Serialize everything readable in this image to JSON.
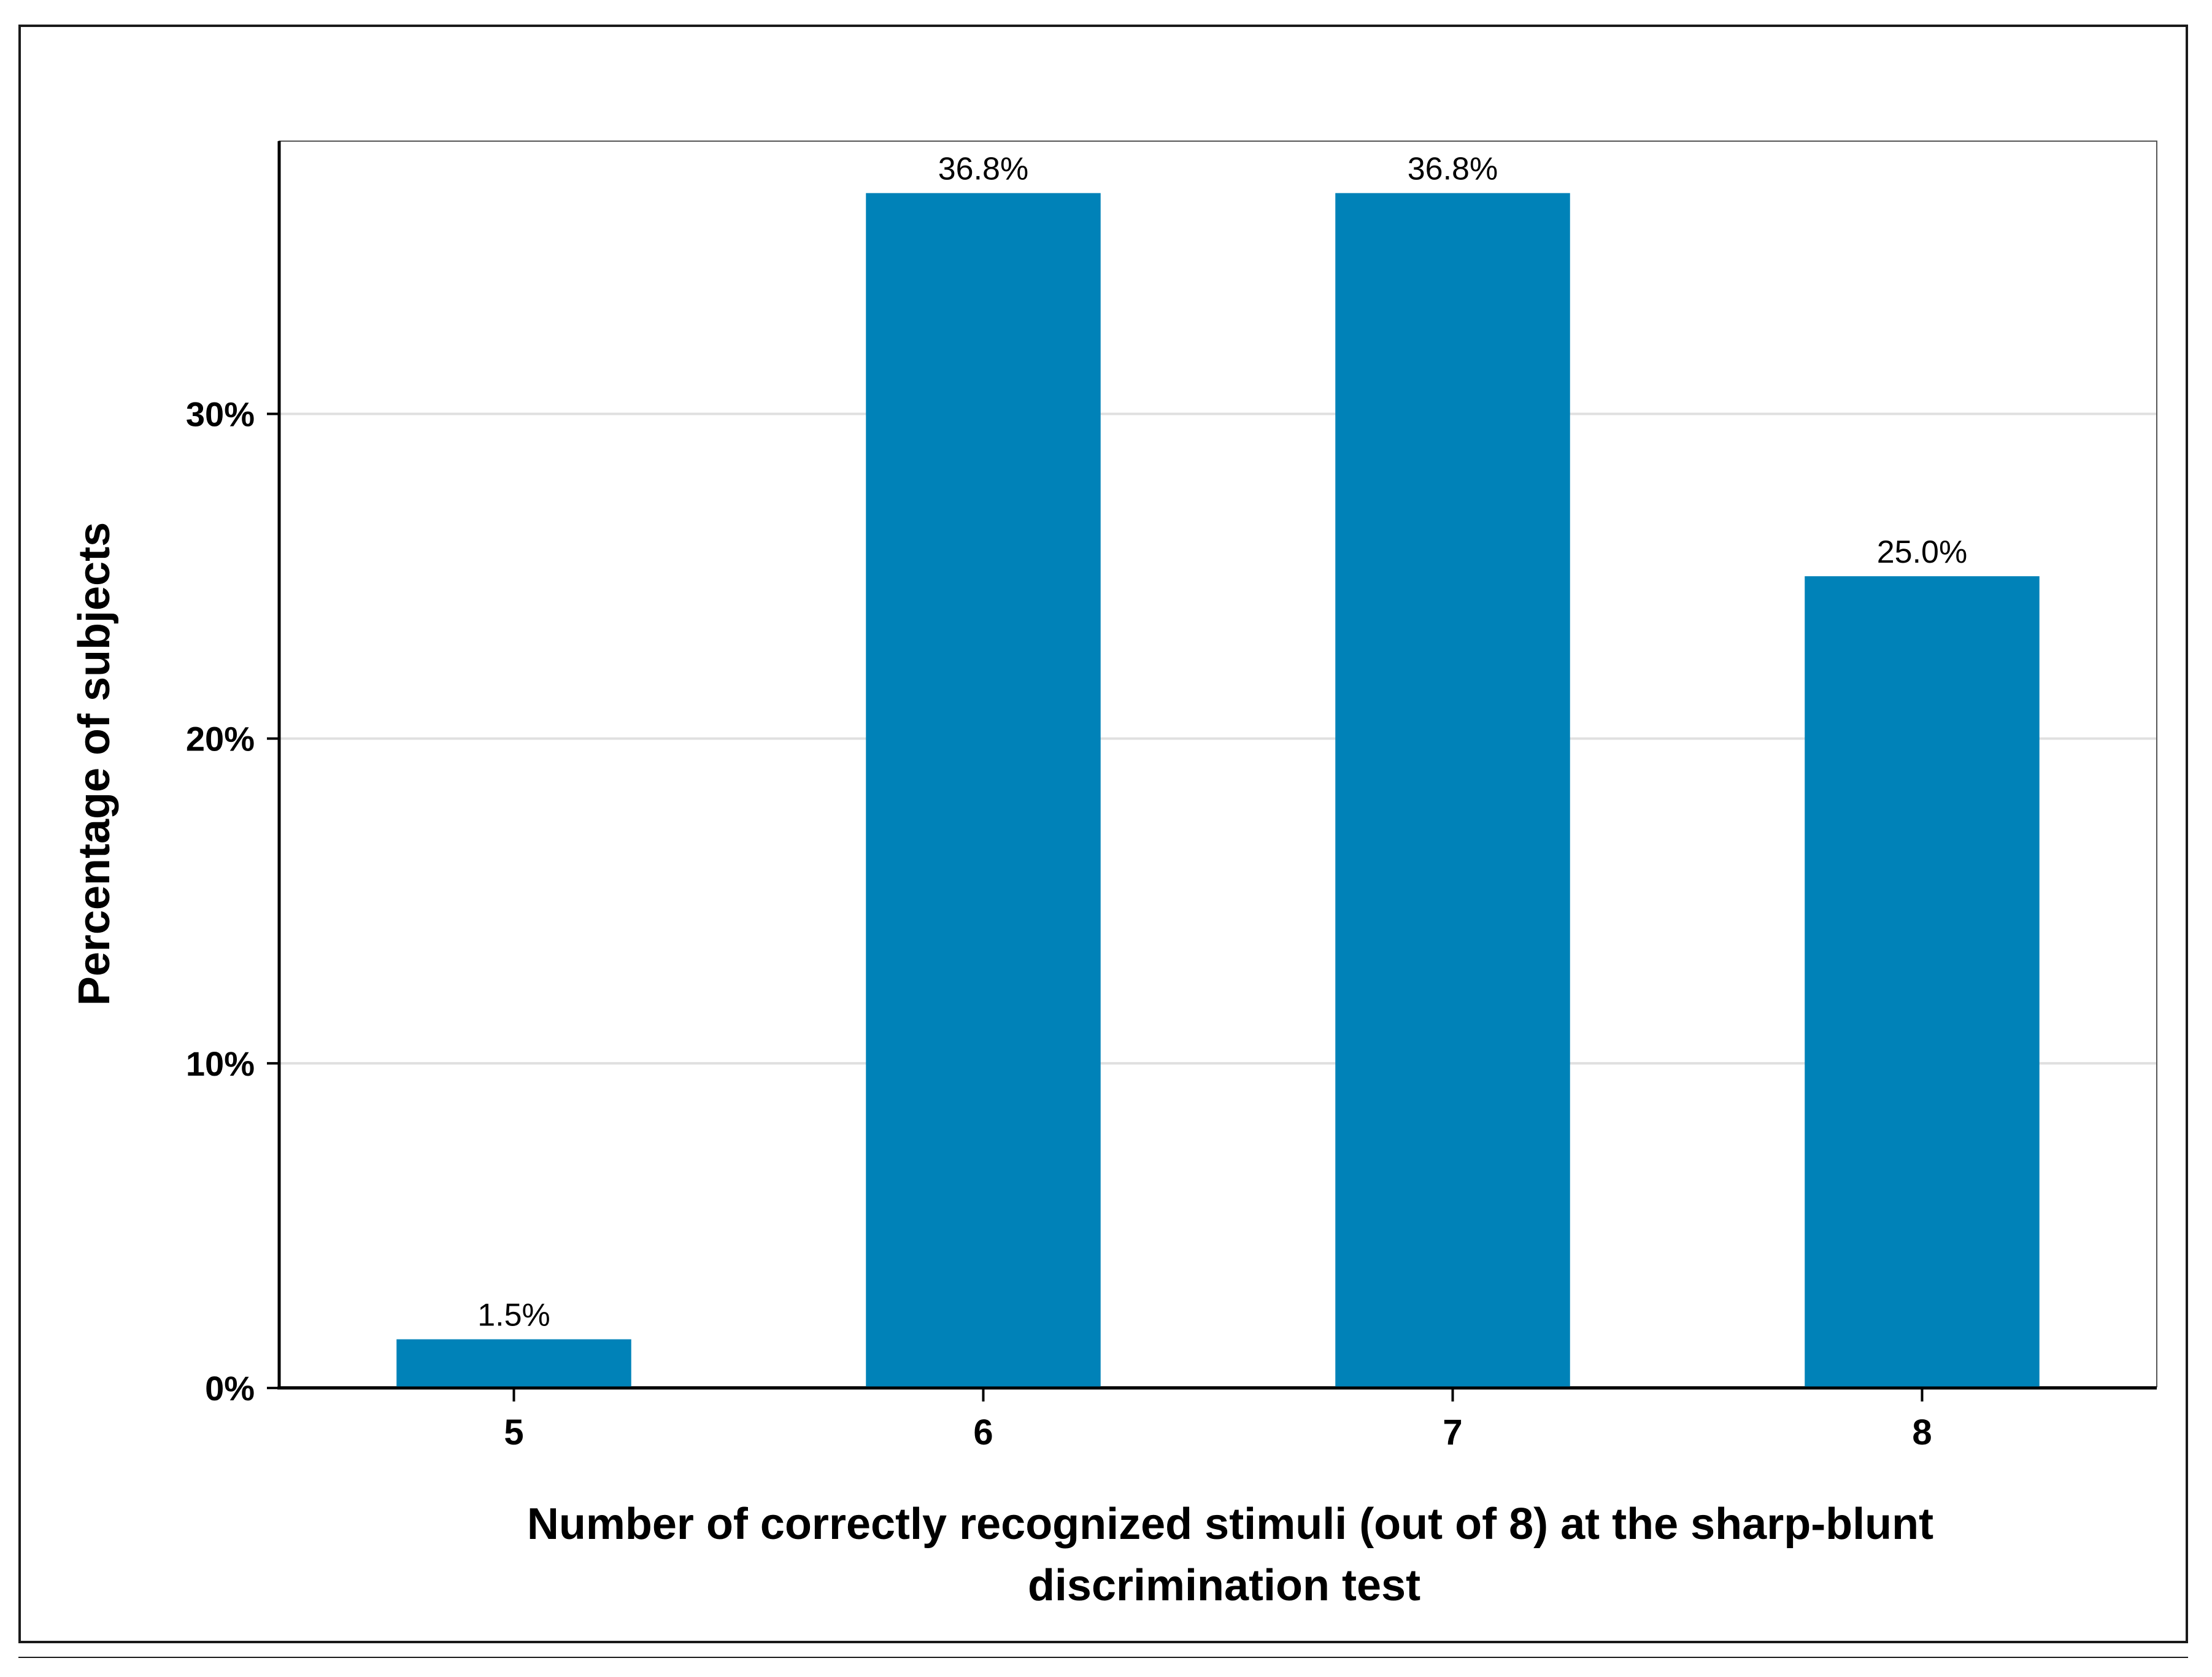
{
  "chart_data": {
    "type": "bar",
    "title": "",
    "categories": [
      "5",
      "6",
      "7",
      "8"
    ],
    "values": [
      1.5,
      36.8,
      36.8,
      25.0
    ],
    "data_labels": [
      "1.5%",
      "36.8%",
      "36.8%",
      "25.0%"
    ],
    "ylim": [
      0,
      38.4
    ],
    "yticks": [
      0,
      10,
      20,
      30
    ],
    "ytick_labels": [
      "0%",
      "10%",
      "20%",
      "30%"
    ],
    "xlabel_lines": [
      "Number of correctly recognized stimuli (out of 8) at the sharp-blunt",
      "discrimination test"
    ],
    "ylabel": "Percentage of subjects",
    "grid": true,
    "bar_color": "#0082B8",
    "grid_color": "#e0e0e0"
  }
}
